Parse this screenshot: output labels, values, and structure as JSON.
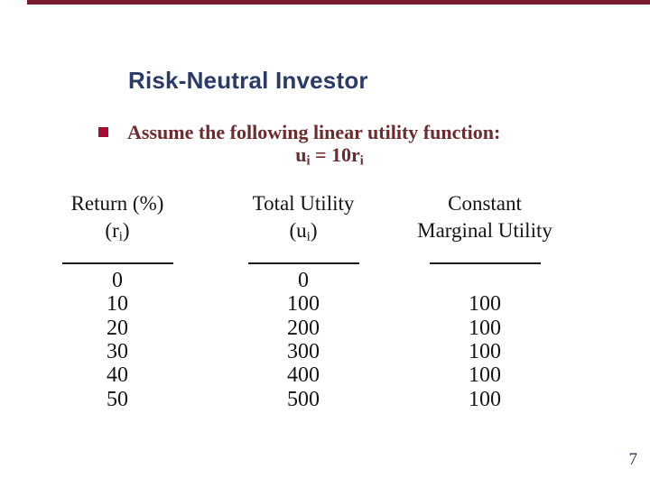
{
  "colors": {
    "top_bar": "#7a1b2e",
    "title": "#2a3b69",
    "bullet_square": "#a60d33",
    "body_text": "#6d2b2e",
    "table_text": "#141414",
    "page_number": "#2f3a50"
  },
  "slide": {
    "title": "Risk-Neutral Investor",
    "bullet_text": "Assume the following linear utility function:",
    "formula": {
      "u_base": "u",
      "u_sub": "i",
      "equals": " = 10",
      "r_base": "r",
      "r_sub": "i"
    },
    "page_number": "7"
  },
  "table": {
    "columns": [
      {
        "line1": "Return (%)",
        "line2_pre": "(r",
        "line2_sub": "i",
        "line2_post": ")"
      },
      {
        "line1": "Total Utility",
        "line2_pre": "(u",
        "line2_sub": "i",
        "line2_post": ")"
      },
      {
        "line1": "Constant",
        "line2_pre": "Marginal Utility",
        "line2_sub": "",
        "line2_post": ""
      }
    ],
    "rows": [
      [
        "0",
        "0",
        ""
      ],
      [
        "10",
        "100",
        "100"
      ],
      [
        "20",
        "200",
        "100"
      ],
      [
        "30",
        "300",
        "100"
      ],
      [
        "40",
        "400",
        "100"
      ],
      [
        "50",
        "500",
        "100"
      ]
    ]
  }
}
